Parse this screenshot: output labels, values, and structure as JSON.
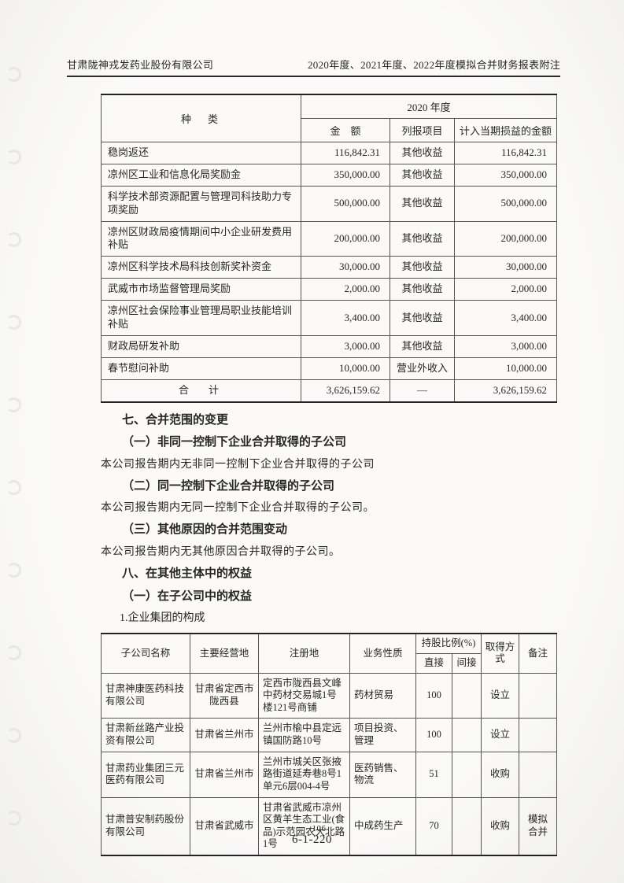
{
  "header": {
    "company": "甘肃陇神戎发药业股份有限公司",
    "title": "2020年度、2021年度、2022年度模拟合并财务报表附注"
  },
  "subsidy_table": {
    "col_type_label": "种　类",
    "year_label": "2020 年度",
    "sub_headers": {
      "amount": "金　额",
      "item": "列报项目",
      "current_profit": "计入当期损益的金额"
    },
    "rows": [
      {
        "type": "稳岗返还",
        "amount": "116,842.31",
        "item": "其他收益",
        "current_profit": "116,842.31"
      },
      {
        "type": "凉州区工业和信息化局奖励金",
        "amount": "350,000.00",
        "item": "其他收益",
        "current_profit": "350,000.00"
      },
      {
        "type": "科学技术部资源配置与管理司科技助力专项奖励",
        "amount": "500,000.00",
        "item": "其他收益",
        "current_profit": "500,000.00"
      },
      {
        "type": "凉州区财政局疫情期间中小企业研发费用补贴",
        "amount": "200,000.00",
        "item": "其他收益",
        "current_profit": "200,000.00"
      },
      {
        "type": "凉州区科学技术局科技创新奖补资金",
        "amount": "30,000.00",
        "item": "其他收益",
        "current_profit": "30,000.00"
      },
      {
        "type": "武威市市场监督管理局奖励",
        "amount": "2,000.00",
        "item": "其他收益",
        "current_profit": "2,000.00"
      },
      {
        "type": "凉州区社会保险事业管理局职业技能培训补贴",
        "amount": "3,400.00",
        "item": "其他收益",
        "current_profit": "3,400.00"
      },
      {
        "type": "财政局研发补助",
        "amount": "3,000.00",
        "item": "其他收益",
        "current_profit": "3,000.00"
      },
      {
        "type": "春节慰问补助",
        "amount": "10,000.00",
        "item": "营业外收入",
        "current_profit": "10,000.00"
      }
    ],
    "total_row": {
      "type": "合　计",
      "amount": "3,626,159.62",
      "item": "—",
      "current_profit": "3,626,159.62"
    }
  },
  "sections": [
    {
      "style": "h1",
      "text": "七、合并范围的变更"
    },
    {
      "style": "h2",
      "text": "（一）非同一控制下企业合并取得的子公司"
    },
    {
      "style": "body",
      "text": "本公司报告期内无非同一控制下企业合并取得的子公司"
    },
    {
      "style": "h2",
      "text": "（二）同一控制下企业合并取得的子公司"
    },
    {
      "style": "body",
      "text": "本公司报告期内无同一控制下企业合并取得的子公司。"
    },
    {
      "style": "h2",
      "text": "（三）其他原因的合并范围变动"
    },
    {
      "style": "body",
      "text": "本公司报告期内无其他原因合并取得的子公司。"
    },
    {
      "style": "h1",
      "text": "八、在其他主体中的权益"
    },
    {
      "style": "h2",
      "text": "（一）在子公司中的权益"
    },
    {
      "style": "h3",
      "text": "1.企业集团的构成"
    }
  ],
  "subsidiary_table": {
    "headers": {
      "name": "子公司名称",
      "main_place": "主要经营地",
      "registered_place": "注册地",
      "business": "业务性质",
      "shareholding": "持股比例(%)",
      "direct": "直接",
      "indirect": "间接",
      "acquisition": "取得方式",
      "remark": "备注"
    },
    "rows": [
      {
        "name": "甘肃神康医药科技有限公司",
        "main_place": "甘肃省定西市陇西县",
        "registered_place": "定西市陇西县文峰中药材交易城1号楼121号商铺",
        "business": "药材贸易",
        "direct": "100",
        "indirect": "",
        "acquisition": "设立",
        "remark": ""
      },
      {
        "name": "甘肃新丝路产业投资有限公司",
        "main_place": "甘肃省兰州市",
        "registered_place": "兰州市榆中县定远镇国防路10号",
        "business": "项目投资、管理",
        "direct": "100",
        "indirect": "",
        "acquisition": "设立",
        "remark": ""
      },
      {
        "name": "甘肃药业集团三元医药有限公司",
        "main_place": "甘肃省兰州市",
        "registered_place": "兰州市城关区张掖路街道延寿巷8号1单元6层004-4号",
        "business": "医药销售、物流",
        "direct": "51",
        "indirect": "",
        "acquisition": "收购",
        "remark": ""
      },
      {
        "name": "甘肃普安制药股份有限公司",
        "main_place": "甘肃省武威市",
        "registered_place": "甘肃省武威市凉州区黄羊生态工业(食品)示范园农大北路1号",
        "business": "中成药生产",
        "direct": "70",
        "indirect": "",
        "acquisition": "收购",
        "remark": "模拟合并"
      }
    ]
  },
  "footer": {
    "page_number": "106",
    "doc_number": "6-1-220"
  }
}
